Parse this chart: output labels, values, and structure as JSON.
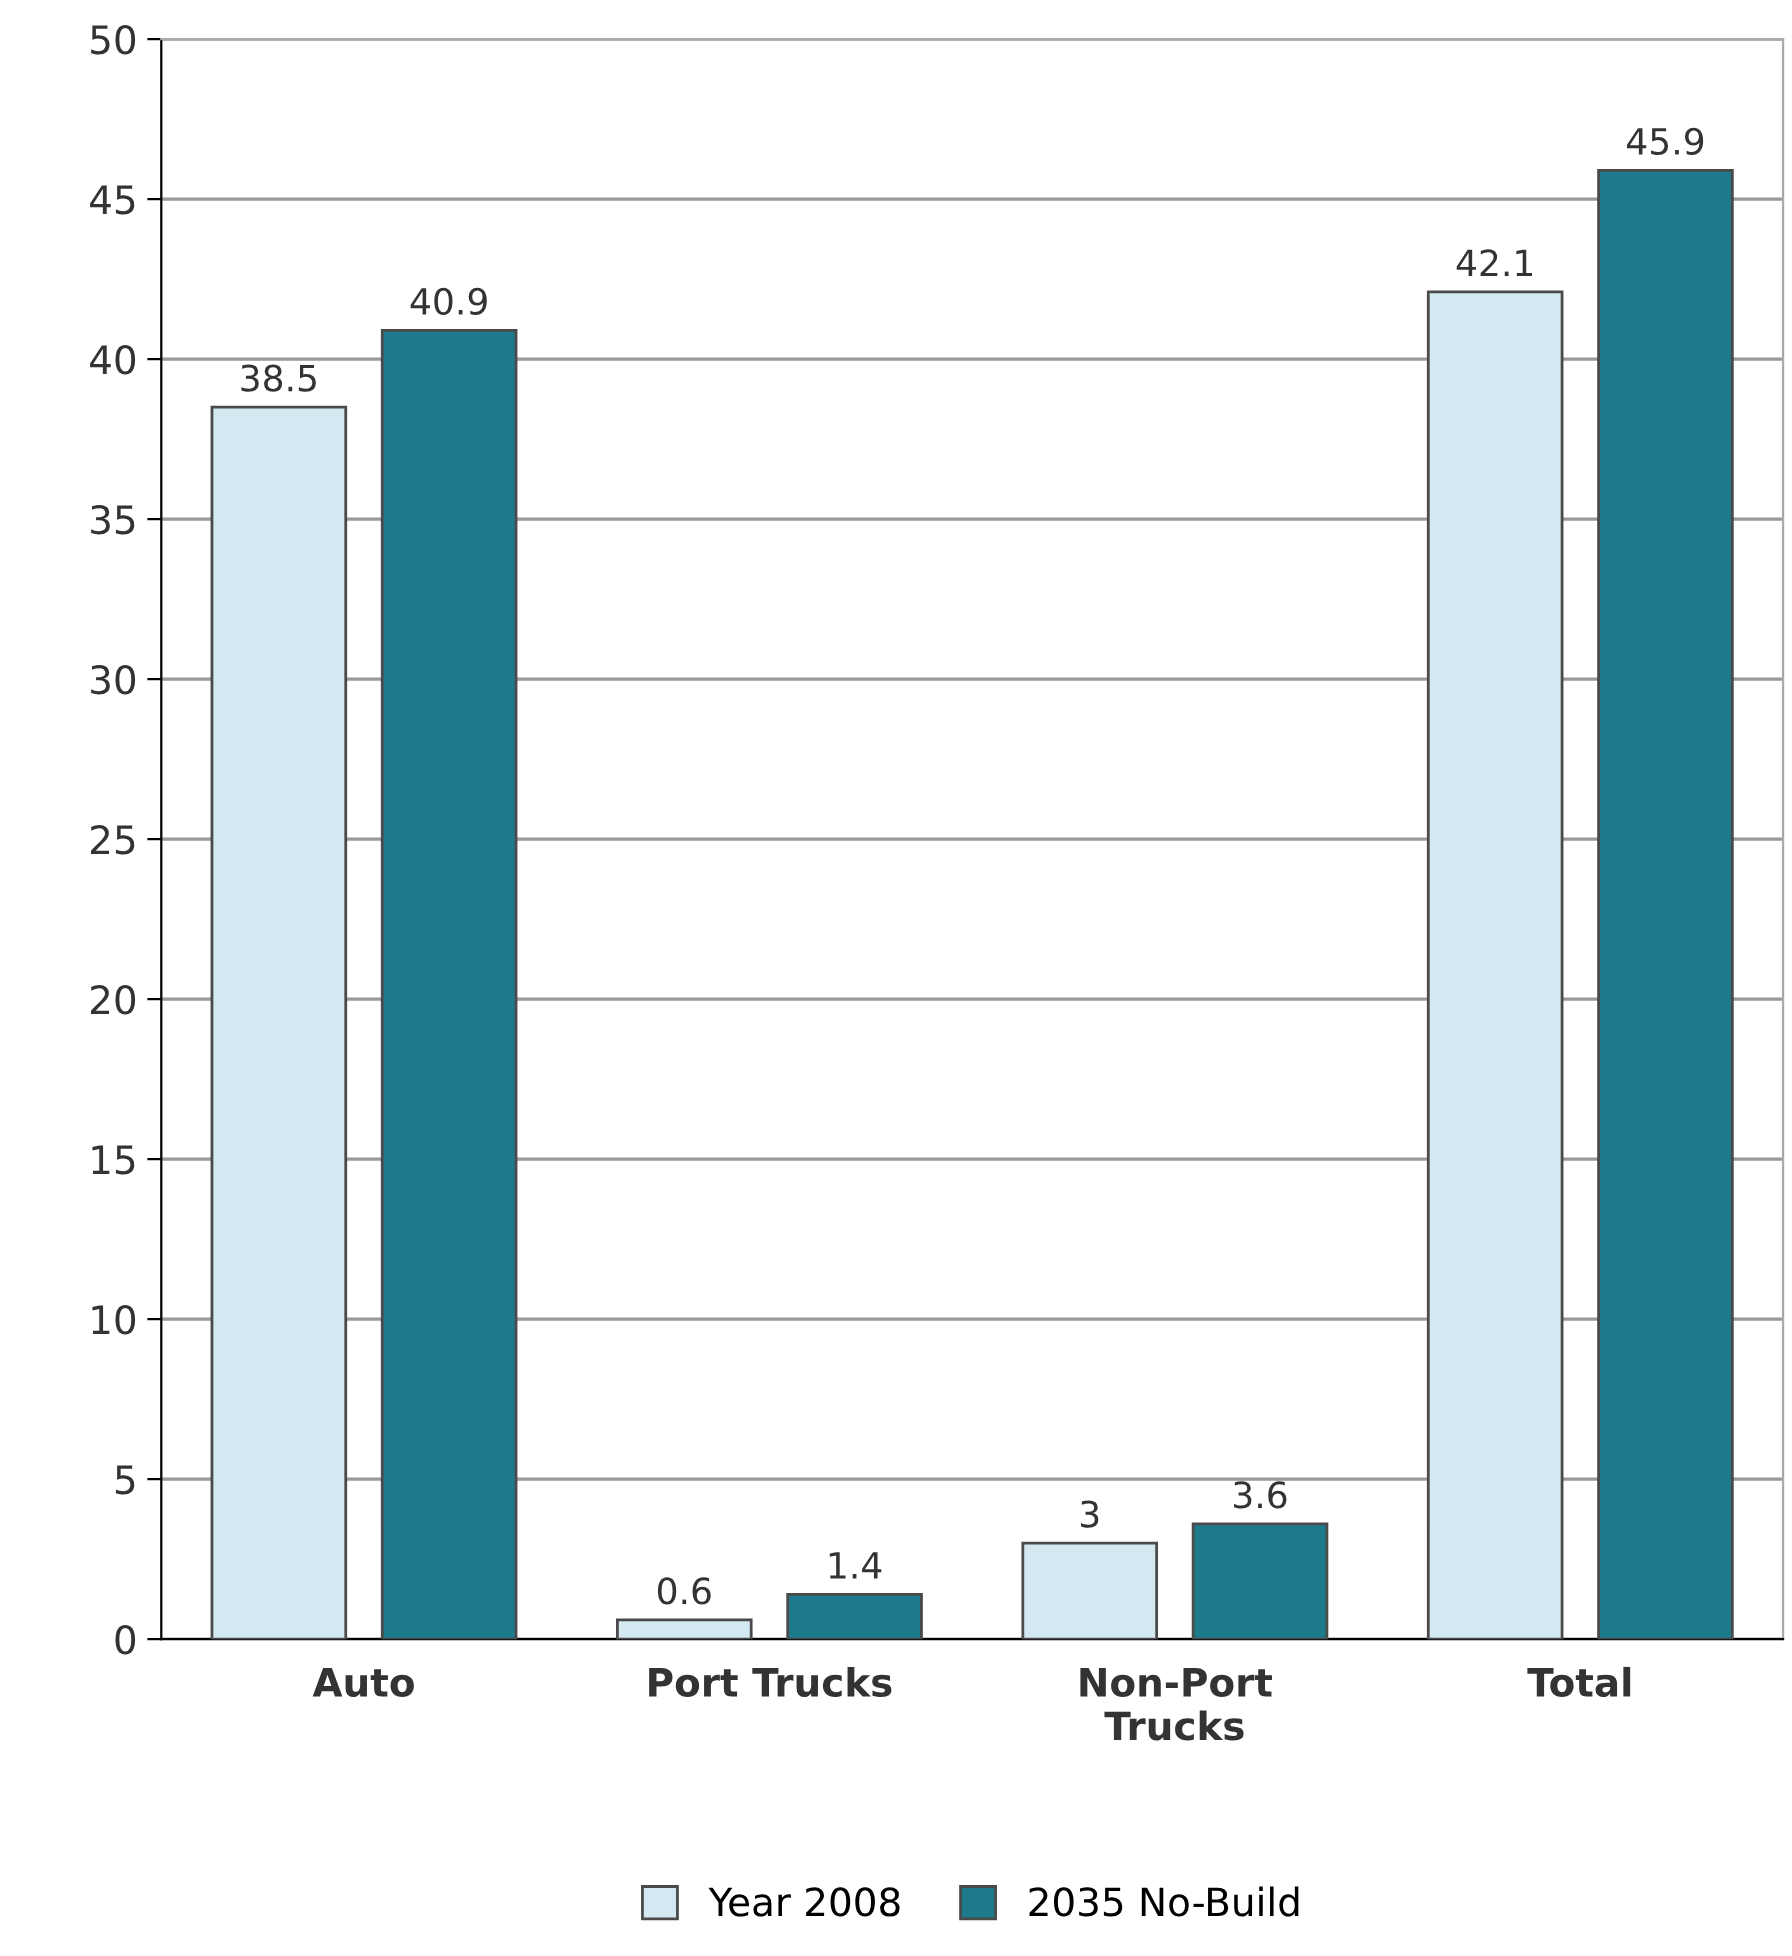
{
  "chart_data": {
    "type": "bar",
    "categories": [
      "Auto",
      "Port Trucks",
      "Non-Port\nTrucks",
      "Total"
    ],
    "series": [
      {
        "name": "Year 2008",
        "color": "#d4e8f2",
        "values": [
          38.5,
          0.6,
          3,
          42.1
        ]
      },
      {
        "name": "2035 No-Build",
        "color": "#1c7a8a",
        "values": [
          40.9,
          1.4,
          3.6,
          45.9
        ]
      }
    ],
    "ylim": [
      0,
      50
    ],
    "yticks": [
      0,
      5,
      10,
      15,
      20,
      25,
      30,
      35,
      40,
      45,
      50
    ],
    "grid": "y",
    "legend": "bottom",
    "data_labels": true
  }
}
